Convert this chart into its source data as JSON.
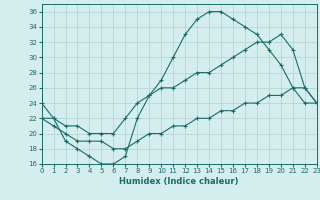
{
  "xlabel": "Humidex (Indice chaleur)",
  "bg_color": "#d4eeee",
  "grid_color": "#b8d4d4",
  "line_color": "#1a6b6b",
  "xlim": [
    0,
    23
  ],
  "ylim": [
    16,
    37
  ],
  "xticks": [
    0,
    1,
    2,
    3,
    4,
    5,
    6,
    7,
    8,
    9,
    10,
    11,
    12,
    13,
    14,
    15,
    16,
    17,
    18,
    19,
    20,
    21,
    22,
    23
  ],
  "yticks": [
    16,
    18,
    20,
    22,
    24,
    26,
    28,
    30,
    32,
    34,
    36
  ],
  "line1_x": [
    0,
    1,
    2,
    3,
    4,
    5,
    6,
    7,
    8,
    9,
    10,
    11,
    12,
    13,
    14,
    15,
    16,
    17,
    18,
    19,
    20,
    21,
    22,
    23
  ],
  "line1_y": [
    24,
    22,
    19,
    18,
    17,
    16,
    16,
    17,
    22,
    25,
    27,
    30,
    33,
    35,
    36,
    36,
    35,
    34,
    33,
    31,
    29,
    26,
    24,
    24
  ],
  "line2_x": [
    0,
    1,
    2,
    3,
    4,
    5,
    6,
    7,
    8,
    9,
    10,
    11,
    12,
    13,
    14,
    15,
    16,
    17,
    18,
    19,
    20,
    21,
    22,
    23
  ],
  "line2_y": [
    22,
    22,
    21,
    21,
    20,
    20,
    20,
    22,
    24,
    25,
    26,
    26,
    27,
    28,
    28,
    29,
    30,
    31,
    32,
    32,
    33,
    31,
    26,
    24
  ],
  "line3_x": [
    0,
    1,
    2,
    3,
    4,
    5,
    6,
    7,
    8,
    9,
    10,
    11,
    12,
    13,
    14,
    15,
    16,
    17,
    18,
    19,
    20,
    21,
    22,
    23
  ],
  "line3_y": [
    22,
    21,
    20,
    19,
    19,
    19,
    18,
    18,
    19,
    20,
    20,
    21,
    21,
    22,
    22,
    23,
    23,
    24,
    24,
    25,
    25,
    26,
    26,
    24
  ]
}
